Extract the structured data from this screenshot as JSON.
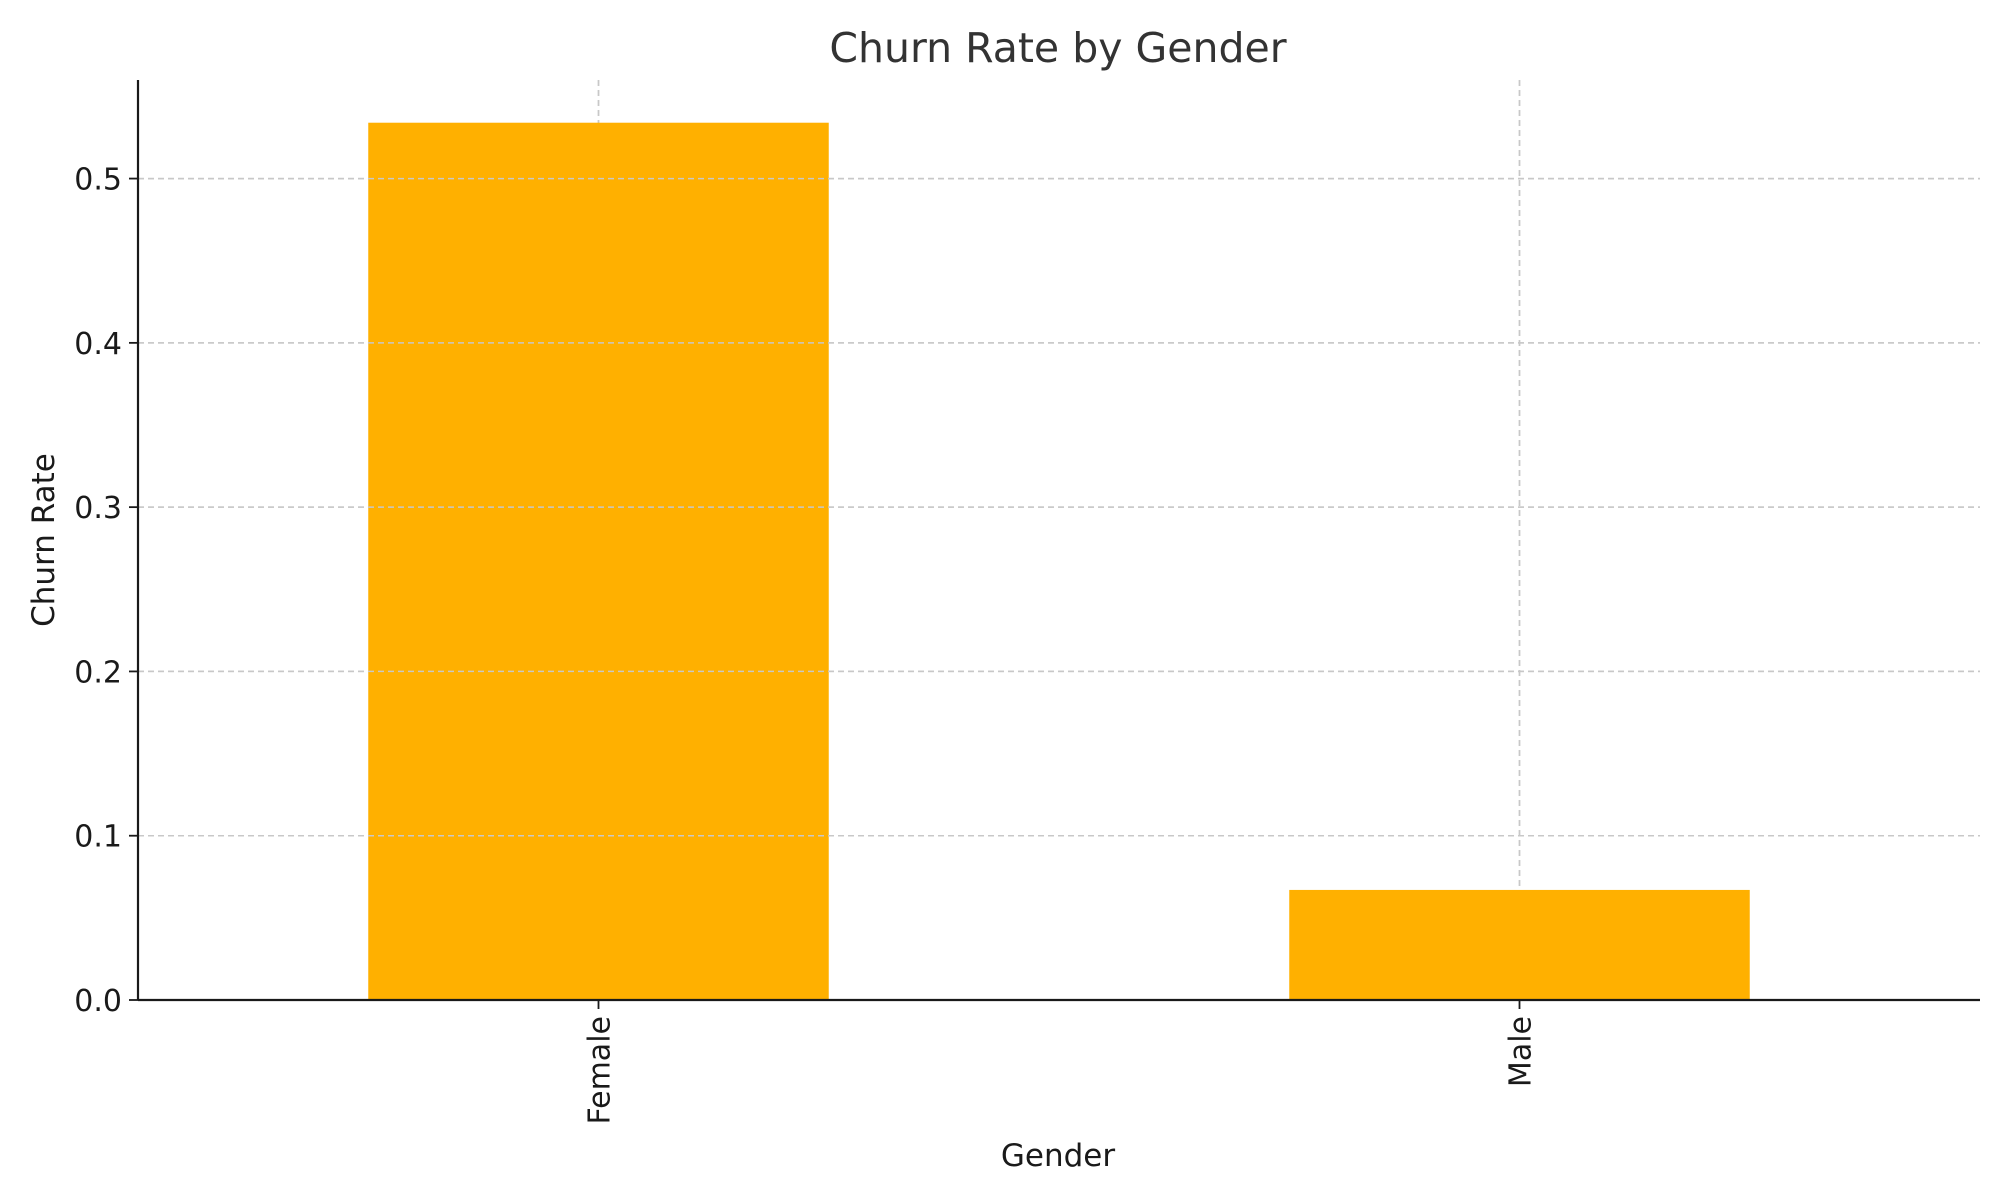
{
  "chart_data": {
    "type": "bar",
    "title": "Churn Rate by Gender",
    "xlabel": "Gender",
    "ylabel": "Churn Rate",
    "categories": [
      "Female",
      "Male"
    ],
    "values": [
      0.534,
      0.067
    ],
    "ylim": [
      0,
      0.56
    ],
    "yticks": [
      0.0,
      0.1,
      0.2,
      0.3,
      0.4,
      0.5
    ],
    "ytick_labels": [
      "0.0",
      "0.1",
      "0.2",
      "0.3",
      "0.4",
      "0.5"
    ],
    "xtick_rotation": "vertical",
    "grid": true,
    "bar_color": "#FFB000",
    "legend": "none"
  }
}
